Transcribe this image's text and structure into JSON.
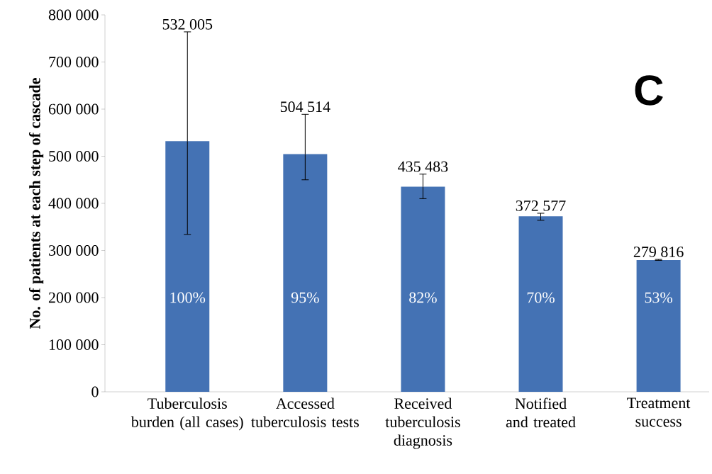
{
  "chart_data": {
    "type": "bar",
    "ylabel": "No. of patients at each step of cascade",
    "categories": [
      "Tuberculosis burden (all cases)",
      "Accessed tuberculosis tests",
      "Received tuberculosis diagnosis",
      "Notified and treated",
      "Treatment success"
    ],
    "values": [
      532005,
      504514,
      435483,
      372577,
      279816
    ],
    "errors": [
      [
        334000,
        764000
      ],
      [
        450000,
        589000
      ],
      [
        410000,
        462000
      ],
      [
        364000,
        379000
      ],
      [
        279000,
        281000
      ]
    ],
    "color": "#4472b4",
    "ylim": [
      0,
      800000
    ],
    "yticks": [
      {
        "value": 0,
        "label": "0"
      },
      {
        "value": 100000,
        "label": "100 000"
      },
      {
        "value": 200000,
        "label": "200 000"
      },
      {
        "value": 300000,
        "label": "300 000"
      },
      {
        "value": 400000,
        "label": "400 000"
      },
      {
        "value": 500000,
        "label": "500 000"
      },
      {
        "value": 600000,
        "label": "600 000"
      },
      {
        "value": 700000,
        "label": "700 000"
      },
      {
        "value": 800000,
        "label": "800 000"
      }
    ],
    "annotations": [
      "532 005",
      "504 514",
      "435 483",
      "372 577",
      "279 816",
      "100%",
      "95%",
      "82%",
      "70%",
      "53%",
      "C"
    ]
  }
}
